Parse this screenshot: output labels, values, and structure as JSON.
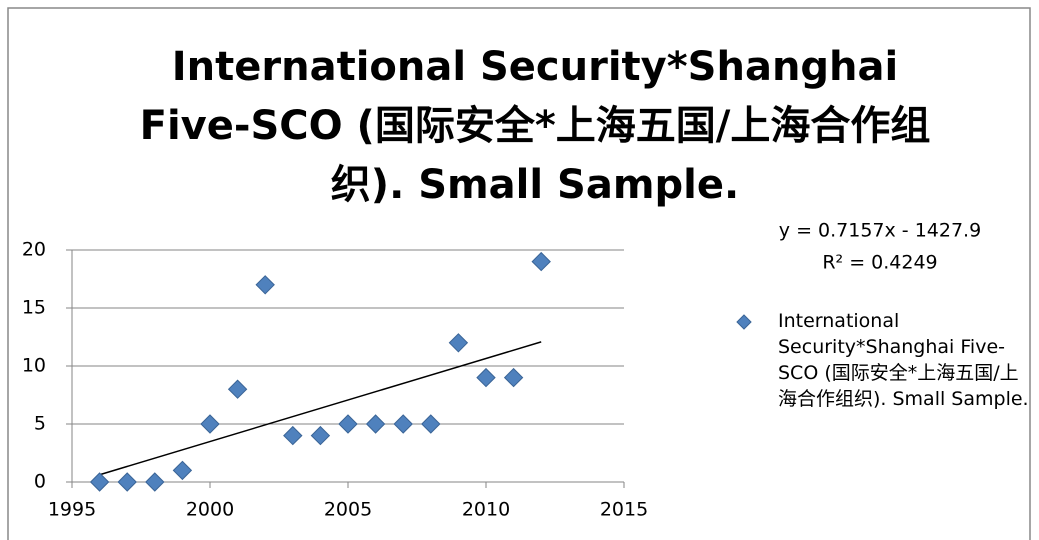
{
  "chart_data": {
    "type": "scatter",
    "title": "International Security*Shanghai Five-SCO (国际安全*上海五国/上海合作组织). Small Sample.",
    "x": [
      1996,
      1997,
      1998,
      1999,
      2000,
      2001,
      2002,
      2003,
      2004,
      2005,
      2006,
      2007,
      2008,
      2009,
      2010,
      2011,
      2012
    ],
    "series": [
      {
        "name": "International Security*Shanghai Five-SCO (国际安全*上海五国/上海合作组织). Small Sample.",
        "color": "#4f81bd",
        "values": [
          0,
          0,
          0,
          1,
          5,
          8,
          17,
          4,
          4,
          5,
          5,
          5,
          5,
          12,
          9,
          9,
          19
        ]
      }
    ],
    "annotations": [
      "y = 0.7157x - 1427.9",
      "R² = 0.4249"
    ],
    "trendline": "linear",
    "xlim": [
      1995,
      2015
    ],
    "xticks": [
      1995,
      2000,
      2005,
      2010,
      2015
    ],
    "ylim": [
      0,
      20
    ],
    "yticks": [
      0,
      5,
      10,
      15,
      20
    ],
    "grid": true,
    "legend": "right"
  }
}
